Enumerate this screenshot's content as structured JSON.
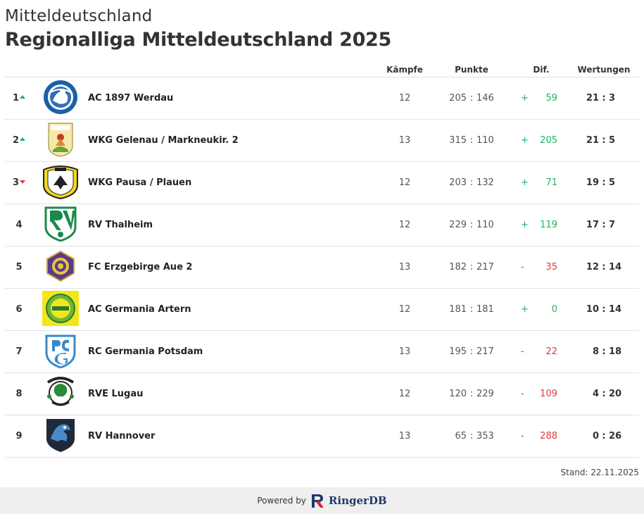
{
  "header": {
    "subtitle": "Mitteldeutschland",
    "title": "Regionalliga Mitteldeutschland 2025"
  },
  "columns": {
    "kampfe": "Kämpfe",
    "punkte": "Punkte",
    "dif": "Dif.",
    "wertungen": "Wertungen"
  },
  "rows": [
    {
      "rank": "1",
      "trend": "up",
      "logo": "ac-werdau-logo",
      "team": "AC 1897 Werdau",
      "kampfe": "12",
      "pf": "205",
      "pa": "146",
      "dif_sign": "+",
      "dif": "59",
      "wf": "21",
      "wa": "3"
    },
    {
      "rank": "2",
      "trend": "up",
      "logo": "wkg-gelenau-logo",
      "team": "WKG Gelenau / Markneukir. 2",
      "kampfe": "13",
      "pf": "315",
      "pa": "110",
      "dif_sign": "+",
      "dif": "205",
      "wf": "21",
      "wa": "5"
    },
    {
      "rank": "3",
      "trend": "down",
      "logo": "wkg-pausa-logo",
      "team": "WKG Pausa / Plauen",
      "kampfe": "12",
      "pf": "203",
      "pa": "132",
      "dif_sign": "+",
      "dif": "71",
      "wf": "19",
      "wa": "5"
    },
    {
      "rank": "4",
      "trend": "none",
      "logo": "rv-thalheim-logo",
      "team": "RV Thalheim",
      "kampfe": "12",
      "pf": "229",
      "pa": "110",
      "dif_sign": "+",
      "dif": "119",
      "wf": "17",
      "wa": "7"
    },
    {
      "rank": "5",
      "trend": "none",
      "logo": "fc-erzgebirge-logo",
      "team": "FC Erzgebirge Aue 2",
      "kampfe": "13",
      "pf": "182",
      "pa": "217",
      "dif_sign": "-",
      "dif": "35",
      "wf": "12",
      "wa": "14"
    },
    {
      "rank": "6",
      "trend": "none",
      "logo": "ac-germania-artern-logo",
      "team": "AC Germania Artern",
      "kampfe": "12",
      "pf": "181",
      "pa": "181",
      "dif_sign": "+",
      "dif": "0",
      "wf": "10",
      "wa": "14"
    },
    {
      "rank": "7",
      "trend": "none",
      "logo": "rc-germania-potsdam-logo",
      "team": "RC Germania Potsdam",
      "kampfe": "13",
      "pf": "195",
      "pa": "217",
      "dif_sign": "-",
      "dif": "22",
      "wf": "8",
      "wa": "18"
    },
    {
      "rank": "8",
      "trend": "none",
      "logo": "rve-lugau-logo",
      "team": "RVE Lugau",
      "kampfe": "12",
      "pf": "120",
      "pa": "229",
      "dif_sign": "-",
      "dif": "109",
      "wf": "4",
      "wa": "20"
    },
    {
      "rank": "9",
      "trend": "none",
      "logo": "rv-hannover-logo",
      "team": "RV Hannover",
      "kampfe": "13",
      "pf": "65",
      "pa": "353",
      "dif_sign": "-",
      "dif": "288",
      "wf": "0",
      "wa": "26"
    }
  ],
  "stand": "Stand: 22.11.2025",
  "footer": {
    "powered_by": "Powered by",
    "brand": "RingerDB"
  },
  "colors": {
    "positive": "#1fb45a",
    "negative": "#e03a3a",
    "brand": "#1e3a6e",
    "footer_bg": "#efefef"
  }
}
